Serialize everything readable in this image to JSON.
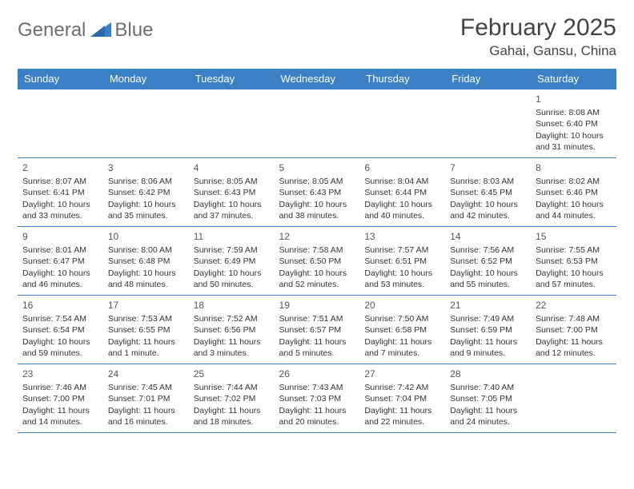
{
  "logo": {
    "word1": "General",
    "word2": "Blue"
  },
  "title": "February 2025",
  "location": "Gahai, Gansu, China",
  "colors": {
    "header_bg": "#3b7fc4",
    "header_text": "#ffffff",
    "border": "#3b7fc4",
    "body_text": "#333333",
    "logo_gray": "#6e6e6e",
    "logo_blue": "#3b7fc4",
    "background": "#ffffff"
  },
  "day_headers": [
    "Sunday",
    "Monday",
    "Tuesday",
    "Wednesday",
    "Thursday",
    "Friday",
    "Saturday"
  ],
  "weeks": [
    [
      null,
      null,
      null,
      null,
      null,
      null,
      {
        "n": "1",
        "sunrise": "8:08 AM",
        "sunset": "6:40 PM",
        "daylight": "10 hours and 31 minutes."
      }
    ],
    [
      {
        "n": "2",
        "sunrise": "8:07 AM",
        "sunset": "6:41 PM",
        "daylight": "10 hours and 33 minutes."
      },
      {
        "n": "3",
        "sunrise": "8:06 AM",
        "sunset": "6:42 PM",
        "daylight": "10 hours and 35 minutes."
      },
      {
        "n": "4",
        "sunrise": "8:05 AM",
        "sunset": "6:43 PM",
        "daylight": "10 hours and 37 minutes."
      },
      {
        "n": "5",
        "sunrise": "8:05 AM",
        "sunset": "6:43 PM",
        "daylight": "10 hours and 38 minutes."
      },
      {
        "n": "6",
        "sunrise": "8:04 AM",
        "sunset": "6:44 PM",
        "daylight": "10 hours and 40 minutes."
      },
      {
        "n": "7",
        "sunrise": "8:03 AM",
        "sunset": "6:45 PM",
        "daylight": "10 hours and 42 minutes."
      },
      {
        "n": "8",
        "sunrise": "8:02 AM",
        "sunset": "6:46 PM",
        "daylight": "10 hours and 44 minutes."
      }
    ],
    [
      {
        "n": "9",
        "sunrise": "8:01 AM",
        "sunset": "6:47 PM",
        "daylight": "10 hours and 46 minutes."
      },
      {
        "n": "10",
        "sunrise": "8:00 AM",
        "sunset": "6:48 PM",
        "daylight": "10 hours and 48 minutes."
      },
      {
        "n": "11",
        "sunrise": "7:59 AM",
        "sunset": "6:49 PM",
        "daylight": "10 hours and 50 minutes."
      },
      {
        "n": "12",
        "sunrise": "7:58 AM",
        "sunset": "6:50 PM",
        "daylight": "10 hours and 52 minutes."
      },
      {
        "n": "13",
        "sunrise": "7:57 AM",
        "sunset": "6:51 PM",
        "daylight": "10 hours and 53 minutes."
      },
      {
        "n": "14",
        "sunrise": "7:56 AM",
        "sunset": "6:52 PM",
        "daylight": "10 hours and 55 minutes."
      },
      {
        "n": "15",
        "sunrise": "7:55 AM",
        "sunset": "6:53 PM",
        "daylight": "10 hours and 57 minutes."
      }
    ],
    [
      {
        "n": "16",
        "sunrise": "7:54 AM",
        "sunset": "6:54 PM",
        "daylight": "10 hours and 59 minutes."
      },
      {
        "n": "17",
        "sunrise": "7:53 AM",
        "sunset": "6:55 PM",
        "daylight": "11 hours and 1 minute."
      },
      {
        "n": "18",
        "sunrise": "7:52 AM",
        "sunset": "6:56 PM",
        "daylight": "11 hours and 3 minutes."
      },
      {
        "n": "19",
        "sunrise": "7:51 AM",
        "sunset": "6:57 PM",
        "daylight": "11 hours and 5 minutes."
      },
      {
        "n": "20",
        "sunrise": "7:50 AM",
        "sunset": "6:58 PM",
        "daylight": "11 hours and 7 minutes."
      },
      {
        "n": "21",
        "sunrise": "7:49 AM",
        "sunset": "6:59 PM",
        "daylight": "11 hours and 9 minutes."
      },
      {
        "n": "22",
        "sunrise": "7:48 AM",
        "sunset": "7:00 PM",
        "daylight": "11 hours and 12 minutes."
      }
    ],
    [
      {
        "n": "23",
        "sunrise": "7:46 AM",
        "sunset": "7:00 PM",
        "daylight": "11 hours and 14 minutes."
      },
      {
        "n": "24",
        "sunrise": "7:45 AM",
        "sunset": "7:01 PM",
        "daylight": "11 hours and 16 minutes."
      },
      {
        "n": "25",
        "sunrise": "7:44 AM",
        "sunset": "7:02 PM",
        "daylight": "11 hours and 18 minutes."
      },
      {
        "n": "26",
        "sunrise": "7:43 AM",
        "sunset": "7:03 PM",
        "daylight": "11 hours and 20 minutes."
      },
      {
        "n": "27",
        "sunrise": "7:42 AM",
        "sunset": "7:04 PM",
        "daylight": "11 hours and 22 minutes."
      },
      {
        "n": "28",
        "sunrise": "7:40 AM",
        "sunset": "7:05 PM",
        "daylight": "11 hours and 24 minutes."
      },
      null
    ]
  ],
  "labels": {
    "sunrise": "Sunrise:",
    "sunset": "Sunset:",
    "daylight": "Daylight:"
  }
}
